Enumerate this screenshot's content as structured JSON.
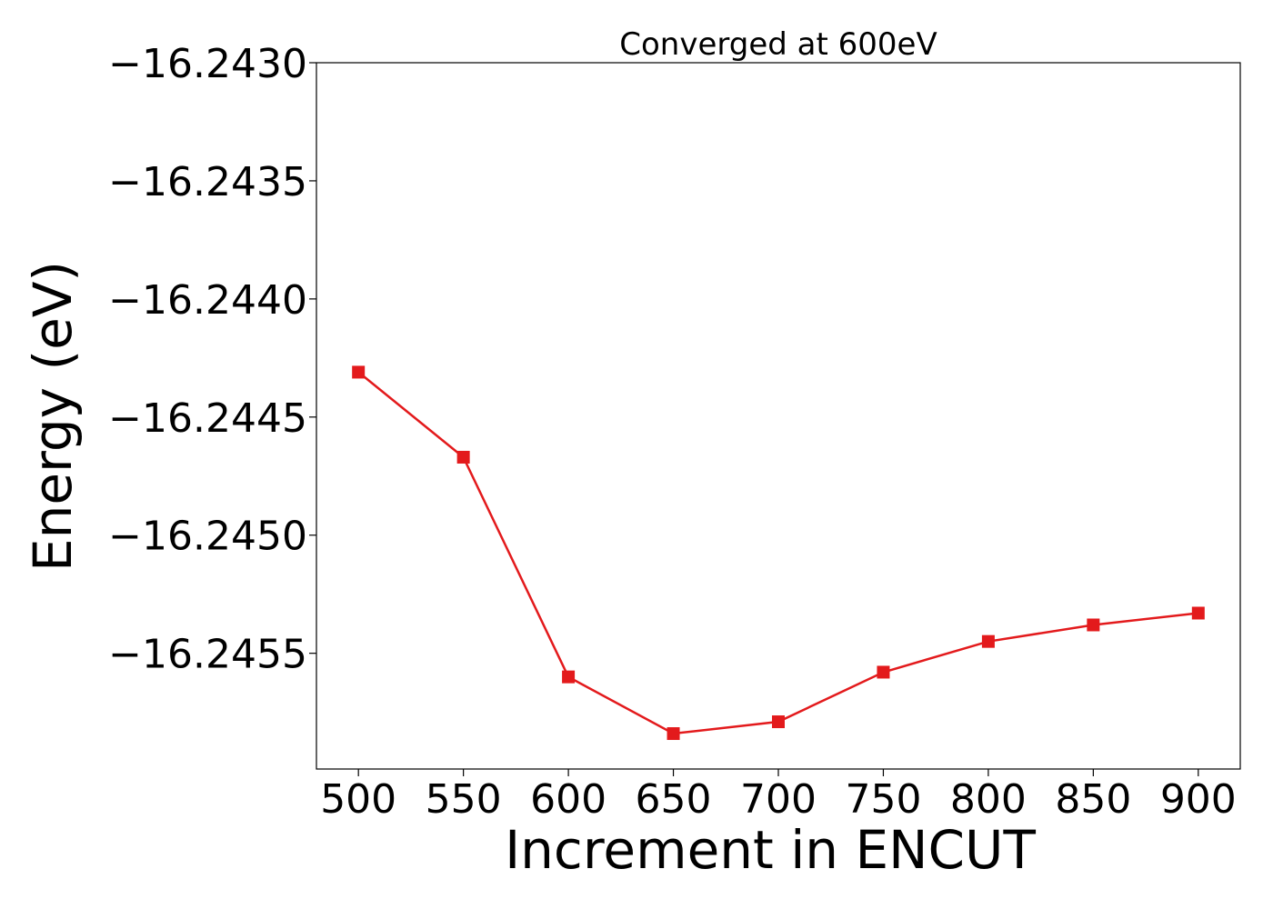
{
  "chart_data": {
    "type": "line",
    "title": "Converged at 600eV",
    "xlabel": "Increment in ENCUT",
    "ylabel": "Energy (eV)",
    "x": [
      500,
      550,
      600,
      650,
      700,
      750,
      800,
      850,
      900
    ],
    "series": [
      {
        "values": [
          -16.24431,
          -16.24467,
          -16.2456,
          -16.24584,
          -16.24579,
          -16.24558,
          -16.24545,
          -16.24538,
          -16.24533
        ],
        "color": "#e31a1c",
        "marker": "square"
      }
    ],
    "xlim": [
      480,
      920
    ],
    "ylim": [
      -16.24599,
      -16.243
    ],
    "xticks": [
      500,
      550,
      600,
      650,
      700,
      750,
      800,
      850,
      900
    ],
    "xtick_labels": [
      "500",
      "550",
      "600",
      "650",
      "700",
      "750",
      "800",
      "850",
      "900"
    ],
    "yticks": [
      -16.243,
      -16.2435,
      -16.244,
      -16.2445,
      -16.245,
      -16.2455
    ],
    "ytick_labels": [
      "−16.2430",
      "−16.2435",
      "−16.2440",
      "−16.2445",
      "−16.2450",
      "−16.2455"
    ],
    "grid": false,
    "legend": "none"
  }
}
